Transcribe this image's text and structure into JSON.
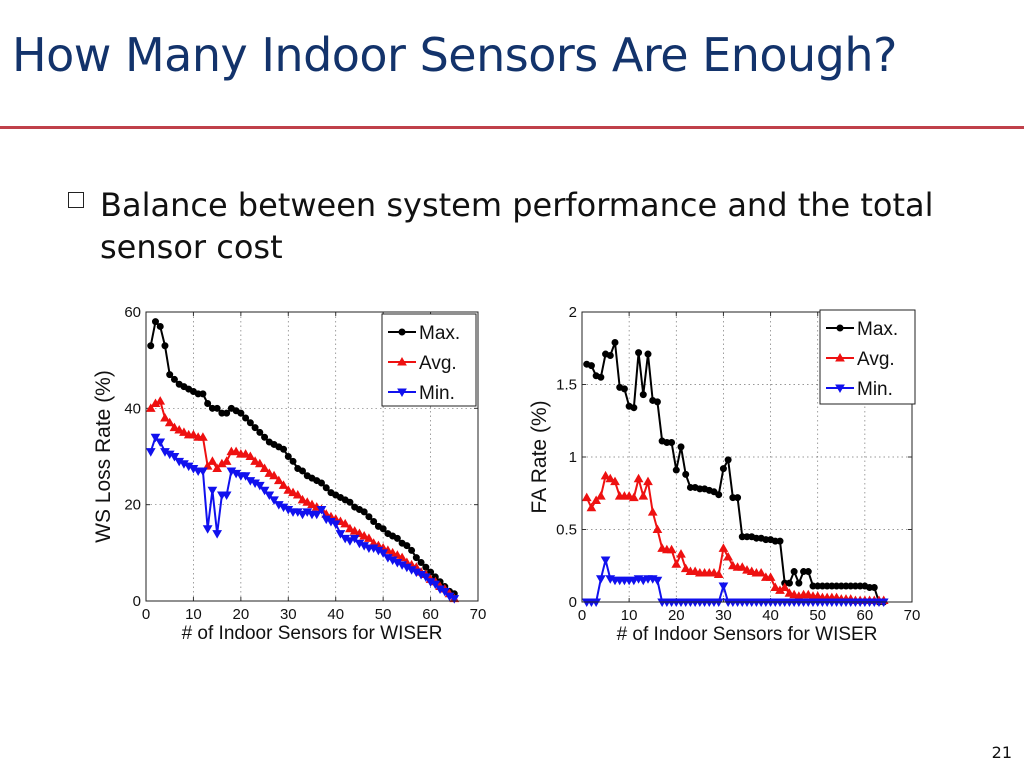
{
  "slide": {
    "title": "How Many Indoor Sensors Are Enough?",
    "bullet": "Balance between system performance and the total sensor cost",
    "page_number": "21"
  },
  "chart_data": [
    {
      "type": "line",
      "xlabel": "# of Indoor Sensors for WISER",
      "ylabel": "WS Loss Rate (%)",
      "xlim": [
        0,
        70
      ],
      "ylim": [
        0,
        60
      ],
      "xticks": [
        0,
        10,
        20,
        30,
        40,
        50,
        60,
        70
      ],
      "yticks": [
        0,
        20,
        40,
        60
      ],
      "grid": true,
      "legend": "top-right",
      "series": [
        {
          "name": "Max.",
          "color": "#000000",
          "marker": "circle",
          "x": [
            1,
            2,
            3,
            4,
            5,
            6,
            7,
            8,
            9,
            10,
            11,
            12,
            13,
            14,
            15,
            16,
            17,
            18,
            19,
            20,
            21,
            22,
            23,
            24,
            25,
            26,
            27,
            28,
            29,
            30,
            31,
            32,
            33,
            34,
            35,
            36,
            37,
            38,
            39,
            40,
            41,
            42,
            43,
            44,
            45,
            46,
            47,
            48,
            49,
            50,
            51,
            52,
            53,
            54,
            55,
            56,
            57,
            58,
            59,
            60,
            61,
            62,
            63,
            64,
            65
          ],
          "values": [
            53,
            58,
            57,
            53,
            47,
            46,
            45,
            44.5,
            44,
            43.5,
            43,
            43,
            41,
            40,
            40,
            39,
            39,
            40,
            39.5,
            39,
            38,
            37,
            36,
            35,
            34,
            33,
            32.5,
            32,
            31.5,
            30,
            29,
            27.5,
            27,
            26,
            25.5,
            25,
            24.5,
            23.5,
            22.5,
            22,
            21.5,
            21,
            20.5,
            19.5,
            19,
            18.5,
            17.5,
            16.5,
            15.5,
            15,
            14,
            13.5,
            13,
            12,
            11.5,
            10.5,
            9,
            8,
            7,
            6,
            5,
            4,
            3,
            2,
            1.5
          ]
        },
        {
          "name": "Avg.",
          "color": "#ee1111",
          "marker": "triangle-up",
          "x": [
            1,
            2,
            3,
            4,
            5,
            6,
            7,
            8,
            9,
            10,
            11,
            12,
            13,
            14,
            15,
            16,
            17,
            18,
            19,
            20,
            21,
            22,
            23,
            24,
            25,
            26,
            27,
            28,
            29,
            30,
            31,
            32,
            33,
            34,
            35,
            36,
            37,
            38,
            39,
            40,
            41,
            42,
            43,
            44,
            45,
            46,
            47,
            48,
            49,
            50,
            51,
            52,
            53,
            54,
            55,
            56,
            57,
            58,
            59,
            60,
            61,
            62,
            63,
            64,
            65
          ],
          "values": [
            40,
            41,
            41.5,
            38,
            37,
            36,
            35.5,
            35,
            34.5,
            34.5,
            34,
            34,
            28,
            29,
            27.5,
            28.5,
            29,
            31,
            31,
            30.5,
            30.5,
            30,
            29,
            28.5,
            27.5,
            26.5,
            26,
            25,
            24,
            23,
            22.5,
            22,
            21,
            20.5,
            20,
            19.5,
            19,
            18,
            17.5,
            17,
            16.5,
            16,
            15,
            14.5,
            14,
            13.5,
            13,
            12,
            11.5,
            11,
            10.5,
            10,
            9.5,
            9,
            8,
            7.5,
            7,
            6,
            5.5,
            4.5,
            4,
            3,
            2.5,
            1.5,
            0.5
          ]
        },
        {
          "name": "Min.",
          "color": "#1111ee",
          "marker": "triangle-down",
          "x": [
            1,
            2,
            3,
            4,
            5,
            6,
            7,
            8,
            9,
            10,
            11,
            12,
            13,
            14,
            15,
            16,
            17,
            18,
            19,
            20,
            21,
            22,
            23,
            24,
            25,
            26,
            27,
            28,
            29,
            30,
            31,
            32,
            33,
            34,
            35,
            36,
            37,
            38,
            39,
            40,
            41,
            42,
            43,
            44,
            45,
            46,
            47,
            48,
            49,
            50,
            51,
            52,
            53,
            54,
            55,
            56,
            57,
            58,
            59,
            60,
            61,
            62,
            63,
            64,
            65
          ],
          "values": [
            31,
            34,
            33,
            31,
            30.5,
            30,
            29,
            28.5,
            28,
            27.5,
            27,
            27,
            15,
            23,
            14,
            22,
            22,
            27,
            26.5,
            26,
            26,
            25,
            24.5,
            24,
            23,
            22,
            21,
            20,
            19.5,
            19,
            18.5,
            18.5,
            18,
            18.5,
            18,
            18,
            19,
            17,
            16.5,
            16,
            14,
            13,
            12.5,
            13,
            12,
            11.5,
            11,
            11,
            10.5,
            10,
            9,
            8.5,
            8,
            7.5,
            7,
            6.5,
            6,
            5.5,
            5,
            4,
            3.5,
            2.5,
            2,
            1,
            0.5
          ]
        }
      ]
    },
    {
      "type": "line",
      "xlabel": "# of Indoor Sensors for WISER",
      "ylabel": "FA Rate (%)",
      "xlim": [
        0,
        70
      ],
      "ylim": [
        0,
        2
      ],
      "xticks": [
        0,
        10,
        20,
        30,
        40,
        50,
        60,
        70
      ],
      "yticks": [
        0,
        0.5,
        1,
        1.5,
        2
      ],
      "grid": true,
      "legend": "top-right",
      "series": [
        {
          "name": "Max.",
          "color": "#000000",
          "marker": "circle",
          "x": [
            1,
            2,
            3,
            4,
            5,
            6,
            7,
            8,
            9,
            10,
            11,
            12,
            13,
            14,
            15,
            16,
            17,
            18,
            19,
            20,
            21,
            22,
            23,
            24,
            25,
            26,
            27,
            28,
            29,
            30,
            31,
            32,
            33,
            34,
            35,
            36,
            37,
            38,
            39,
            40,
            41,
            42,
            43,
            44,
            45,
            46,
            47,
            48,
            49,
            50,
            51,
            52,
            53,
            54,
            55,
            56,
            57,
            58,
            59,
            60,
            61,
            62,
            63,
            64
          ],
          "values": [
            1.64,
            1.63,
            1.56,
            1.55,
            1.71,
            1.7,
            1.79,
            1.48,
            1.47,
            1.35,
            1.34,
            1.72,
            1.43,
            1.71,
            1.39,
            1.38,
            1.11,
            1.1,
            1.1,
            0.91,
            1.07,
            0.88,
            0.79,
            0.79,
            0.78,
            0.78,
            0.77,
            0.76,
            0.74,
            0.92,
            0.98,
            0.72,
            0.72,
            0.45,
            0.45,
            0.45,
            0.44,
            0.44,
            0.43,
            0.43,
            0.42,
            0.42,
            0.13,
            0.13,
            0.21,
            0.13,
            0.21,
            0.21,
            0.11,
            0.11,
            0.11,
            0.11,
            0.11,
            0.11,
            0.11,
            0.11,
            0.11,
            0.11,
            0.11,
            0.11,
            0.1,
            0.1,
            0,
            0
          ]
        },
        {
          "name": "Avg.",
          "color": "#ee1111",
          "marker": "triangle-up",
          "x": [
            1,
            2,
            3,
            4,
            5,
            6,
            7,
            8,
            9,
            10,
            11,
            12,
            13,
            14,
            15,
            16,
            17,
            18,
            19,
            20,
            21,
            22,
            23,
            24,
            25,
            26,
            27,
            28,
            29,
            30,
            31,
            32,
            33,
            34,
            35,
            36,
            37,
            38,
            39,
            40,
            41,
            42,
            43,
            44,
            45,
            46,
            47,
            48,
            49,
            50,
            51,
            52,
            53,
            54,
            55,
            56,
            57,
            58,
            59,
            60,
            61,
            62,
            63,
            64
          ],
          "values": [
            0.72,
            0.65,
            0.7,
            0.73,
            0.87,
            0.85,
            0.83,
            0.73,
            0.73,
            0.73,
            0.72,
            0.85,
            0.73,
            0.83,
            0.62,
            0.5,
            0.37,
            0.36,
            0.36,
            0.26,
            0.33,
            0.23,
            0.21,
            0.21,
            0.2,
            0.2,
            0.2,
            0.2,
            0.19,
            0.37,
            0.31,
            0.25,
            0.24,
            0.24,
            0.22,
            0.21,
            0.2,
            0.2,
            0.17,
            0.17,
            0.1,
            0.08,
            0.1,
            0.06,
            0.05,
            0.04,
            0.05,
            0.05,
            0.04,
            0.04,
            0.03,
            0.03,
            0.03,
            0.03,
            0.02,
            0.02,
            0.02,
            0.01,
            0.01,
            0.01,
            0.01,
            0.01,
            0.01,
            0.01
          ]
        },
        {
          "name": "Min.",
          "color": "#1111ee",
          "marker": "triangle-down",
          "x": [
            1,
            2,
            3,
            4,
            5,
            6,
            7,
            8,
            9,
            10,
            11,
            12,
            13,
            14,
            15,
            16,
            17,
            18,
            19,
            20,
            21,
            22,
            23,
            24,
            25,
            26,
            27,
            28,
            29,
            30,
            31,
            32,
            33,
            34,
            35,
            36,
            37,
            38,
            39,
            40,
            41,
            42,
            43,
            44,
            45,
            46,
            47,
            48,
            49,
            50,
            51,
            52,
            53,
            54,
            55,
            56,
            57,
            58,
            59,
            60,
            61,
            62,
            63,
            64
          ],
          "values": [
            0,
            0,
            0,
            0.16,
            0.29,
            0.16,
            0.15,
            0.15,
            0.15,
            0.15,
            0.15,
            0.16,
            0.15,
            0.16,
            0.16,
            0.15,
            0,
            0,
            0,
            0,
            0,
            0,
            0,
            0,
            0,
            0,
            0,
            0,
            0,
            0.11,
            0,
            0,
            0,
            0,
            0,
            0,
            0,
            0,
            0,
            0,
            0,
            0,
            0,
            0,
            0,
            0,
            0,
            0,
            0,
            0,
            0,
            0,
            0,
            0,
            0,
            0,
            0,
            0,
            0,
            0,
            0,
            0,
            0,
            0
          ]
        }
      ]
    }
  ]
}
